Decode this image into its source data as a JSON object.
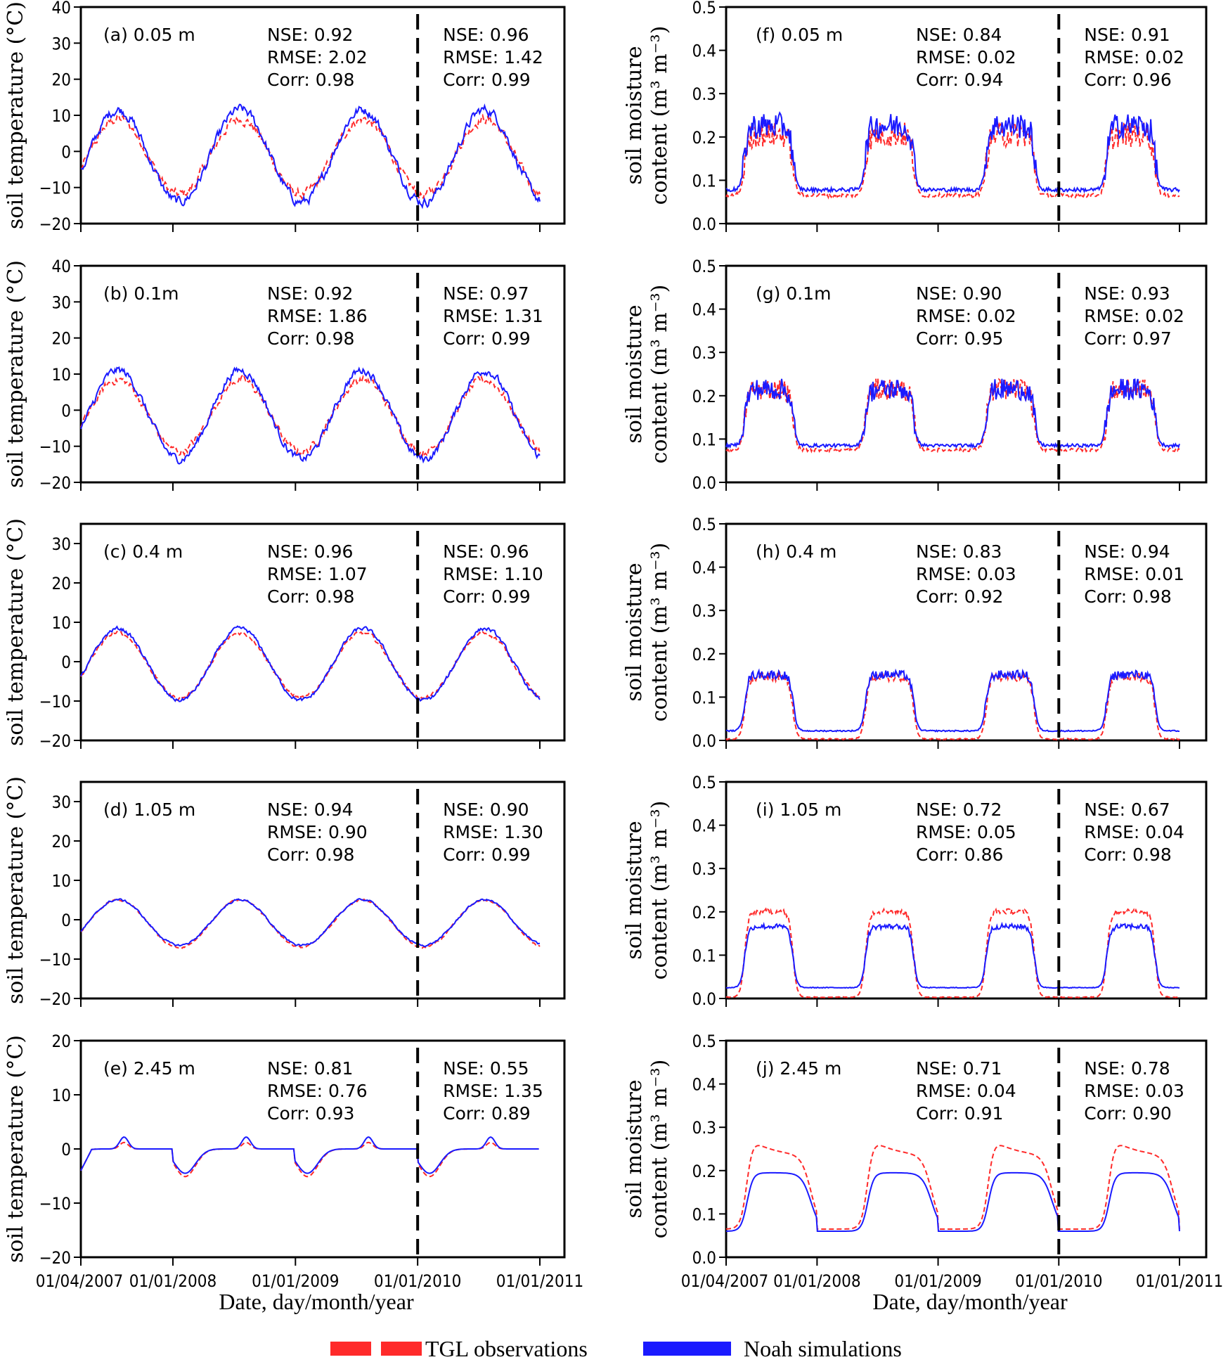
{
  "chart_data": {
    "type": "line",
    "x_start": "01/04/2007",
    "x_end": "01/01/2011",
    "x_ticks": [
      "01/04/2007",
      "01/01/2008",
      "01/01/2009",
      "01/01/2010",
      "01/01/2011"
    ],
    "x_tick_days": [
      0,
      275,
      641,
      1006,
      1371
    ],
    "split_date": "01/01/2010",
    "split_day": 1006,
    "xlabel": "Date, day/month/year",
    "legend": [
      {
        "name": "TGL observations",
        "color": "#ff2a2a",
        "style": "dashed"
      },
      {
        "name": "Noah simulations",
        "color": "#1a1aff",
        "style": "solid"
      }
    ],
    "panels": [
      {
        "id": "a",
        "label": "(a) 0.05 m",
        "column": "left",
        "ylabel": "soil temperature (°C)",
        "ylim": [
          -20,
          40
        ],
        "yticks": [
          "40",
          "30",
          "20",
          "10",
          "0",
          "−10",
          "−20"
        ],
        "ytick_values": [
          40,
          30,
          20,
          10,
          0,
          -10,
          -20
        ],
        "stats_calibration": {
          "nse": "NSE: 0.92",
          "rmse": "RMSE: 2.02",
          "corr": "Corr: 0.98"
        },
        "stats_validation": {
          "nse": "NSE: 0.96",
          "rmse": "RMSE: 1.42",
          "corr": "Corr: 0.99"
        },
        "kind": "temp",
        "amp_sim": 12.5,
        "amp_obs": 10.5,
        "mean": -1.5,
        "noise": 2.2
      },
      {
        "id": "b",
        "label": "(b) 0.1m",
        "column": "left",
        "ylabel": "soil temperature (°C)",
        "ylim": [
          -20,
          40
        ],
        "yticks": [
          "40",
          "30",
          "20",
          "10",
          "0",
          "−10",
          "−20"
        ],
        "ytick_values": [
          40,
          30,
          20,
          10,
          0,
          -10,
          -20
        ],
        "stats_calibration": {
          "nse": "NSE: 0.92",
          "rmse": "RMSE: 1.86",
          "corr": "Corr: 0.98"
        },
        "stats_validation": {
          "nse": "NSE: 0.97",
          "rmse": "RMSE: 1.31",
          "corr": "Corr: 0.99"
        },
        "kind": "temp",
        "amp_sim": 12.0,
        "amp_obs": 10.0,
        "mean": -1.5,
        "noise": 1.8
      },
      {
        "id": "c",
        "label": "(c) 0.4 m",
        "column": "left",
        "ylabel": "soil temperature (°C)",
        "ylim": [
          -20,
          35
        ],
        "yticks": [
          "30",
          "20",
          "10",
          "0",
          "−10",
          "−20"
        ],
        "ytick_values": [
          30,
          20,
          10,
          0,
          -10,
          -20
        ],
        "stats_calibration": {
          "nse": "NSE: 0.96",
          "rmse": "RMSE: 1.07",
          "corr": "Corr: 0.98"
        },
        "stats_validation": {
          "nse": "NSE: 0.96",
          "rmse": "RMSE: 1.10",
          "corr": "Corr: 0.99"
        },
        "kind": "temp",
        "amp_sim": 8.8,
        "amp_obs": 8.3,
        "mean": -1.0,
        "noise": 0.8
      },
      {
        "id": "d",
        "label": "(d) 1.05 m",
        "column": "left",
        "ylabel": "soil temperature (°C)",
        "ylim": [
          -20,
          35
        ],
        "yticks": [
          "30",
          "20",
          "10",
          "0",
          "−10",
          "−20"
        ],
        "ytick_values": [
          30,
          20,
          10,
          0,
          -10,
          -20
        ],
        "stats_calibration": {
          "nse": "NSE: 0.94",
          "rmse": "RMSE: 0.90",
          "corr": "Corr: 0.98"
        },
        "stats_validation": {
          "nse": "NSE: 0.90",
          "rmse": "RMSE: 1.30",
          "corr": "Corr: 0.99"
        },
        "kind": "temp",
        "amp_sim": 5.5,
        "amp_obs": 6.0,
        "mean": -1.0,
        "noise": 0.4
      },
      {
        "id": "e",
        "label": "(e) 2.45 m",
        "column": "left",
        "ylabel": "soil temperature (°C)",
        "ylim": [
          -20,
          20
        ],
        "yticks": [
          "20",
          "10",
          "0",
          "−10",
          "−20"
        ],
        "ytick_values": [
          20,
          10,
          0,
          -10,
          -20
        ],
        "stats_calibration": {
          "nse": "NSE: 0.81",
          "rmse": "RMSE: 0.76",
          "corr": "Corr: 0.93"
        },
        "stats_validation": {
          "nse": "NSE: 0.55",
          "rmse": "RMSE: 1.35",
          "corr": "Corr: 0.89"
        },
        "kind": "deep",
        "amp_sim": 3.5,
        "amp_obs": 3.5,
        "mean": -1.0,
        "noise": 0.1
      },
      {
        "id": "f",
        "label": "(f) 0.05 m",
        "column": "right",
        "ylabel": "soil moisture",
        "ylabel2": "content (m³ m⁻³)",
        "ylim": [
          0,
          0.5
        ],
        "yticks": [
          "0.5",
          "0.4",
          "0.3",
          "0.2",
          "0.1",
          "0.0"
        ],
        "ytick_values": [
          0.5,
          0.4,
          0.3,
          0.2,
          0.1,
          0.0
        ],
        "stats_calibration": {
          "nse": "NSE: 0.84",
          "rmse": "RMSE: 0.02",
          "corr": "Corr: 0.94"
        },
        "stats_validation": {
          "nse": "NSE: 0.91",
          "rmse": "RMSE: 0.02",
          "corr": "Corr: 0.96"
        },
        "kind": "moist",
        "sim_high": 0.22,
        "obs_high": 0.2,
        "sim_low": 0.078,
        "obs_low": 0.065,
        "noise": 0.03
      },
      {
        "id": "g",
        "label": "(g) 0.1m",
        "column": "right",
        "ylabel": "soil moisture",
        "ylabel2": "content (m³ m⁻³)",
        "ylim": [
          0,
          0.5
        ],
        "yticks": [
          "0.5",
          "0.4",
          "0.3",
          "0.2",
          "0.1",
          "0.0"
        ],
        "ytick_values": [
          0.5,
          0.4,
          0.3,
          0.2,
          0.1,
          0.0
        ],
        "stats_calibration": {
          "nse": "NSE: 0.90",
          "rmse": "RMSE: 0.02",
          "corr": "Corr: 0.95"
        },
        "stats_validation": {
          "nse": "NSE: 0.93",
          "rmse": "RMSE: 0.02",
          "corr": "Corr: 0.97"
        },
        "kind": "moist",
        "sim_high": 0.21,
        "obs_high": 0.21,
        "sim_low": 0.085,
        "obs_low": 0.075,
        "noise": 0.025
      },
      {
        "id": "h",
        "label": "(h) 0.4 m",
        "column": "right",
        "ylabel": "soil moisture",
        "ylabel2": "content (m³ m⁻³)",
        "ylim": [
          0,
          0.5
        ],
        "yticks": [
          "0.5",
          "0.4",
          "0.3",
          "0.2",
          "0.1",
          "0.0"
        ],
        "ytick_values": [
          0.5,
          0.4,
          0.3,
          0.2,
          0.1,
          0.0
        ],
        "stats_calibration": {
          "nse": "NSE: 0.83",
          "rmse": "RMSE: 0.03",
          "corr": "Corr: 0.92"
        },
        "stats_validation": {
          "nse": "NSE: 0.94",
          "rmse": "RMSE: 0.01",
          "corr": "Corr: 0.98"
        },
        "kind": "moist",
        "sim_high": 0.15,
        "obs_high": 0.145,
        "sim_low": 0.022,
        "obs_low": 0.003,
        "noise": 0.01
      },
      {
        "id": "i",
        "label": "(i) 1.05 m",
        "column": "right",
        "ylabel": "soil moisture",
        "ylabel2": "content (m³ m⁻³)",
        "ylim": [
          0,
          0.5
        ],
        "yticks": [
          "0.5",
          "0.4",
          "0.3",
          "0.2",
          "0.1",
          "0.0"
        ],
        "ytick_values": [
          0.5,
          0.4,
          0.3,
          0.2,
          0.1,
          0.0
        ],
        "stats_calibration": {
          "nse": "NSE: 0.72",
          "rmse": "RMSE: 0.05",
          "corr": "Corr: 0.86"
        },
        "stats_validation": {
          "nse": "NSE: 0.67",
          "rmse": "RMSE: 0.04",
          "corr": "Corr: 0.98"
        },
        "kind": "moist",
        "sim_high": 0.165,
        "obs_high": 0.2,
        "sim_low": 0.025,
        "obs_low": 0.003,
        "noise": 0.006
      },
      {
        "id": "j",
        "label": "(j) 2.45 m",
        "column": "right",
        "ylabel": "soil moisture",
        "ylabel2": "content (m³ m⁻³)",
        "ylim": [
          0,
          0.5
        ],
        "yticks": [
          "0.5",
          "0.4",
          "0.3",
          "0.2",
          "0.1",
          "0.0"
        ],
        "ytick_values": [
          0.5,
          0.4,
          0.3,
          0.2,
          0.1,
          0.0
        ],
        "stats_calibration": {
          "nse": "NSE: 0.71",
          "rmse": "RMSE: 0.04",
          "corr": "Corr: 0.91"
        },
        "stats_validation": {
          "nse": "NSE: 0.78",
          "rmse": "RMSE: 0.03",
          "corr": "Corr: 0.90"
        },
        "kind": "moistdeep",
        "sim_high": 0.195,
        "obs_high": 0.235,
        "sim_low": 0.06,
        "obs_low": 0.065,
        "noise": 0.004
      }
    ]
  }
}
